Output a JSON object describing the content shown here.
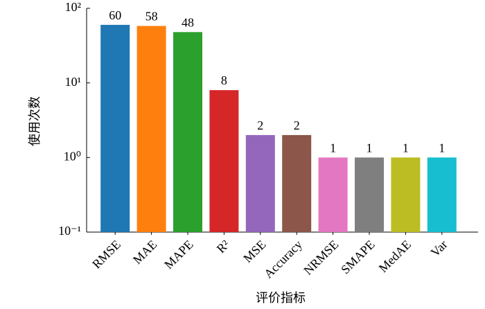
{
  "chart_data": {
    "type": "bar",
    "categories": [
      "RMSE",
      "MAE",
      "MAPE",
      "R²",
      "MSE",
      "Accuracy",
      "NRMSE",
      "SMAPE",
      "MedAE",
      "Var"
    ],
    "values": [
      60,
      58,
      48,
      8,
      2,
      2,
      1,
      1,
      1,
      1
    ],
    "colors": [
      "#1f77b4",
      "#ff7f0e",
      "#2ca02c",
      "#d62728",
      "#9467bd",
      "#8c564b",
      "#e377c2",
      "#7f7f7f",
      "#bcbd22",
      "#17becf"
    ],
    "ylabel": "使用次数",
    "xlabel": "评价指标",
    "ylog": true,
    "ylim": [
      0.1,
      100
    ],
    "yticks": [
      {
        "value": 0.1,
        "label": "10⁻¹"
      },
      {
        "value": 1,
        "label": "10⁰"
      },
      {
        "value": 10,
        "label": "10¹"
      },
      {
        "value": 100,
        "label": "10²"
      }
    ]
  }
}
